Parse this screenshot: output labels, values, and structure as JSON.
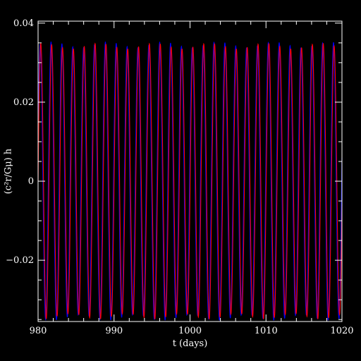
{
  "chart_data": {
    "type": "line",
    "xlabel": "t (days)",
    "ylabel": "(c²r/Gμ) h",
    "xlim": [
      980,
      1020
    ],
    "ylim": [
      -0.0355,
      0.0405
    ],
    "x_ticks": [
      980,
      990,
      1000,
      1010,
      1020
    ],
    "x_tick_labels": [
      "980",
      "990",
      "1000",
      "1010",
      "1020"
    ],
    "y_ticks": [
      -0.02,
      0,
      0.02,
      0.04
    ],
    "y_tick_labels": [
      "−0.02",
      "0",
      "0.02",
      "0.04"
    ],
    "background": "#000000",
    "axis_color": "#ffffff",
    "series": [
      {
        "color": "#0000ff",
        "type": "sinusoid",
        "amplitude": 0.0345,
        "period_days": 1.43,
        "phase_at_980": 0.35,
        "amplitude_ripple": 0.0007
      },
      {
        "color": "#ff0000",
        "type": "sinusoid",
        "amplitude": 0.0342,
        "period_days": 1.43,
        "phase_at_980": 0.0,
        "amplitude_ripple": 0.0007
      }
    ]
  }
}
